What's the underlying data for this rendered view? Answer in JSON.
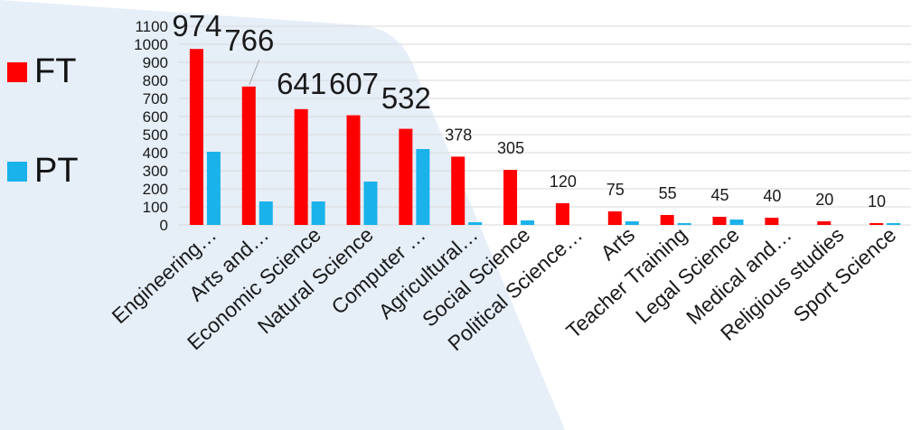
{
  "legend": {
    "items": [
      {
        "label": "FT",
        "color": "#ff0000"
      },
      {
        "label": "PT",
        "color": "#1ab2ea"
      }
    ]
  },
  "colors": {
    "background_shape": "#e6eef8",
    "gridline": "#d9d9d9",
    "leader_line": "#a6a6a6"
  },
  "chart_data": {
    "type": "bar",
    "categories": [
      "Engineering…",
      "Arts and…",
      "Economic Science",
      "Natural Science",
      "Computer …",
      "Agricultural…",
      "Social Science",
      "Political Science…",
      "Arts",
      "Teacher Training",
      "Legal Science",
      "Medical and…",
      "Religious studies",
      "Sport Science"
    ],
    "series": [
      {
        "name": "FT",
        "color": "#ff0000",
        "values": [
          974,
          766,
          641,
          607,
          532,
          378,
          305,
          120,
          75,
          55,
          45,
          40,
          20,
          10
        ]
      },
      {
        "name": "PT",
        "color": "#1ab2ea",
        "values": [
          405,
          130,
          130,
          240,
          420,
          15,
          25,
          0,
          20,
          10,
          30,
          0,
          0,
          10
        ]
      }
    ],
    "data_labels": [
      "974",
      "766",
      "641",
      "607",
      "532",
      "378",
      "305",
      "120",
      "75",
      "55",
      "45",
      "40",
      "20",
      "10"
    ],
    "yticks": [
      0,
      100,
      200,
      300,
      400,
      500,
      600,
      700,
      800,
      900,
      1000,
      1100
    ],
    "ylim": [
      0,
      1100
    ],
    "grid": true,
    "legend_position": "left"
  }
}
